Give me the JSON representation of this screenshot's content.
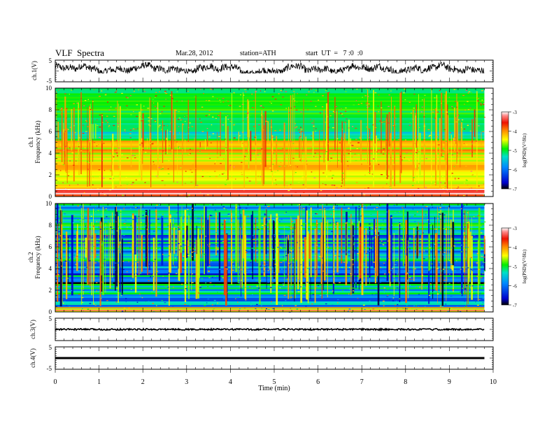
{
  "header": {
    "title": "VLF  Spectra",
    "date": "Mar.28, 2012",
    "station": "station=ATH",
    "start": "start  UT  =   7 :0  :0"
  },
  "chart_data": [
    {
      "type": "line",
      "panel": "ch1-waveform",
      "ylabel": "ch.1(V)",
      "ylim": [
        -5,
        5
      ],
      "yticks": [
        "5",
        "-5"
      ],
      "xlim": [
        0,
        10
      ],
      "trace_end_min": 9.8,
      "trace_mean_v": 1.0,
      "trace_range_v": [
        -1.0,
        4.0
      ],
      "color": "#000000"
    },
    {
      "type": "heatmap",
      "panel": "ch1-spectrogram",
      "ylabel": "ch.1\nFrequency  (kHz)",
      "ylim": [
        0,
        10
      ],
      "yticks": [
        "0",
        "2",
        "4",
        "6",
        "8",
        "10"
      ],
      "xlim": [
        0,
        10
      ],
      "data_end_min": 9.8,
      "colorbar": {
        "label": "log(PSD)(V²/Hz)",
        "range": [
          -7,
          -3
        ],
        "ticks": [
          "-3",
          "-4",
          "-5",
          "-6",
          "-7"
        ]
      },
      "dominant_level": "-5 (green) above 5 kHz; -4 (orange/red) below 5 kHz"
    },
    {
      "type": "heatmap",
      "panel": "ch2-spectrogram",
      "ylabel": "ch.2\nFrequency  (kHz)",
      "ylim": [
        0,
        10
      ],
      "yticks": [
        "0",
        "2",
        "4",
        "6",
        "8",
        "10"
      ],
      "xlim": [
        0,
        10
      ],
      "data_end_min": 9.8,
      "colorbar": {
        "label": "log(PSD)(V²/Hz)",
        "range": [
          -7,
          -3
        ],
        "ticks": [
          "-3",
          "-4",
          "-5",
          "-6",
          "-7"
        ]
      },
      "dominant_level": "-5 to -6 (green/cyan) with bursts at -4 and above"
    },
    {
      "type": "line",
      "panel": "ch3-waveform",
      "ylabel": "ch.3(V)",
      "ylim": [
        -5,
        5
      ],
      "yticks": [
        "5"
      ],
      "xlim": [
        0,
        10
      ],
      "trace_end_min": 9.8,
      "trace_mean_v": 0.0,
      "color": "#000000"
    },
    {
      "type": "line",
      "panel": "ch4-waveform",
      "ylabel": "ch.4(V)",
      "ylim": [
        -5,
        5
      ],
      "yticks": [
        "5",
        "-5"
      ],
      "xlim": [
        0,
        10
      ],
      "trace_end_min": 9.8,
      "trace_mean_v": 0.0,
      "color": "#000000"
    }
  ],
  "xaxis": {
    "label": "Time  (min)",
    "ticks": [
      "0",
      "1",
      "2",
      "3",
      "4",
      "5",
      "6",
      "7",
      "8",
      "9",
      "10"
    ]
  }
}
